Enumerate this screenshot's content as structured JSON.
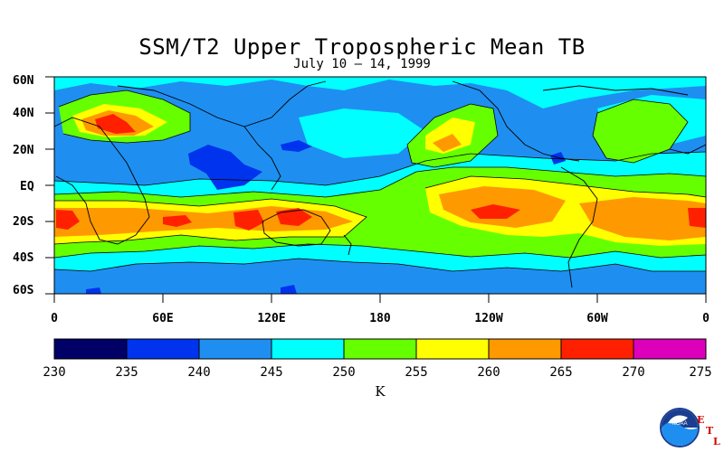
{
  "title": "SSM/T2 Upper Tropospheric Mean TB",
  "subtitle": "July 10 – 14, 1999",
  "lat_labels": [
    "60N",
    "40N",
    "20N",
    "EQ",
    "20S",
    "40S",
    "60S"
  ],
  "lon_labels": [
    "0",
    "60E",
    "120E",
    "180",
    "120W",
    "60W",
    "0"
  ],
  "colorbar": {
    "ticks": [
      "230",
      "235",
      "240",
      "245",
      "250",
      "255",
      "260",
      "265",
      "270",
      "275"
    ],
    "colors": [
      "#000066",
      "#0033ee",
      "#1e8ff0",
      "#00ffff",
      "#66ff00",
      "#ffff00",
      "#ff9900",
      "#ff2000",
      "#dd00bb"
    ],
    "unit": "K"
  },
  "map": {
    "lon_range": [
      0,
      360
    ],
    "lat_range": [
      -60,
      60
    ],
    "variable": "upper tropospheric mean brightness temperature",
    "palette_base": "#1e8ff0"
  },
  "logo": {
    "text": "NOAA",
    "letters": [
      "E",
      "T",
      "L"
    ]
  }
}
